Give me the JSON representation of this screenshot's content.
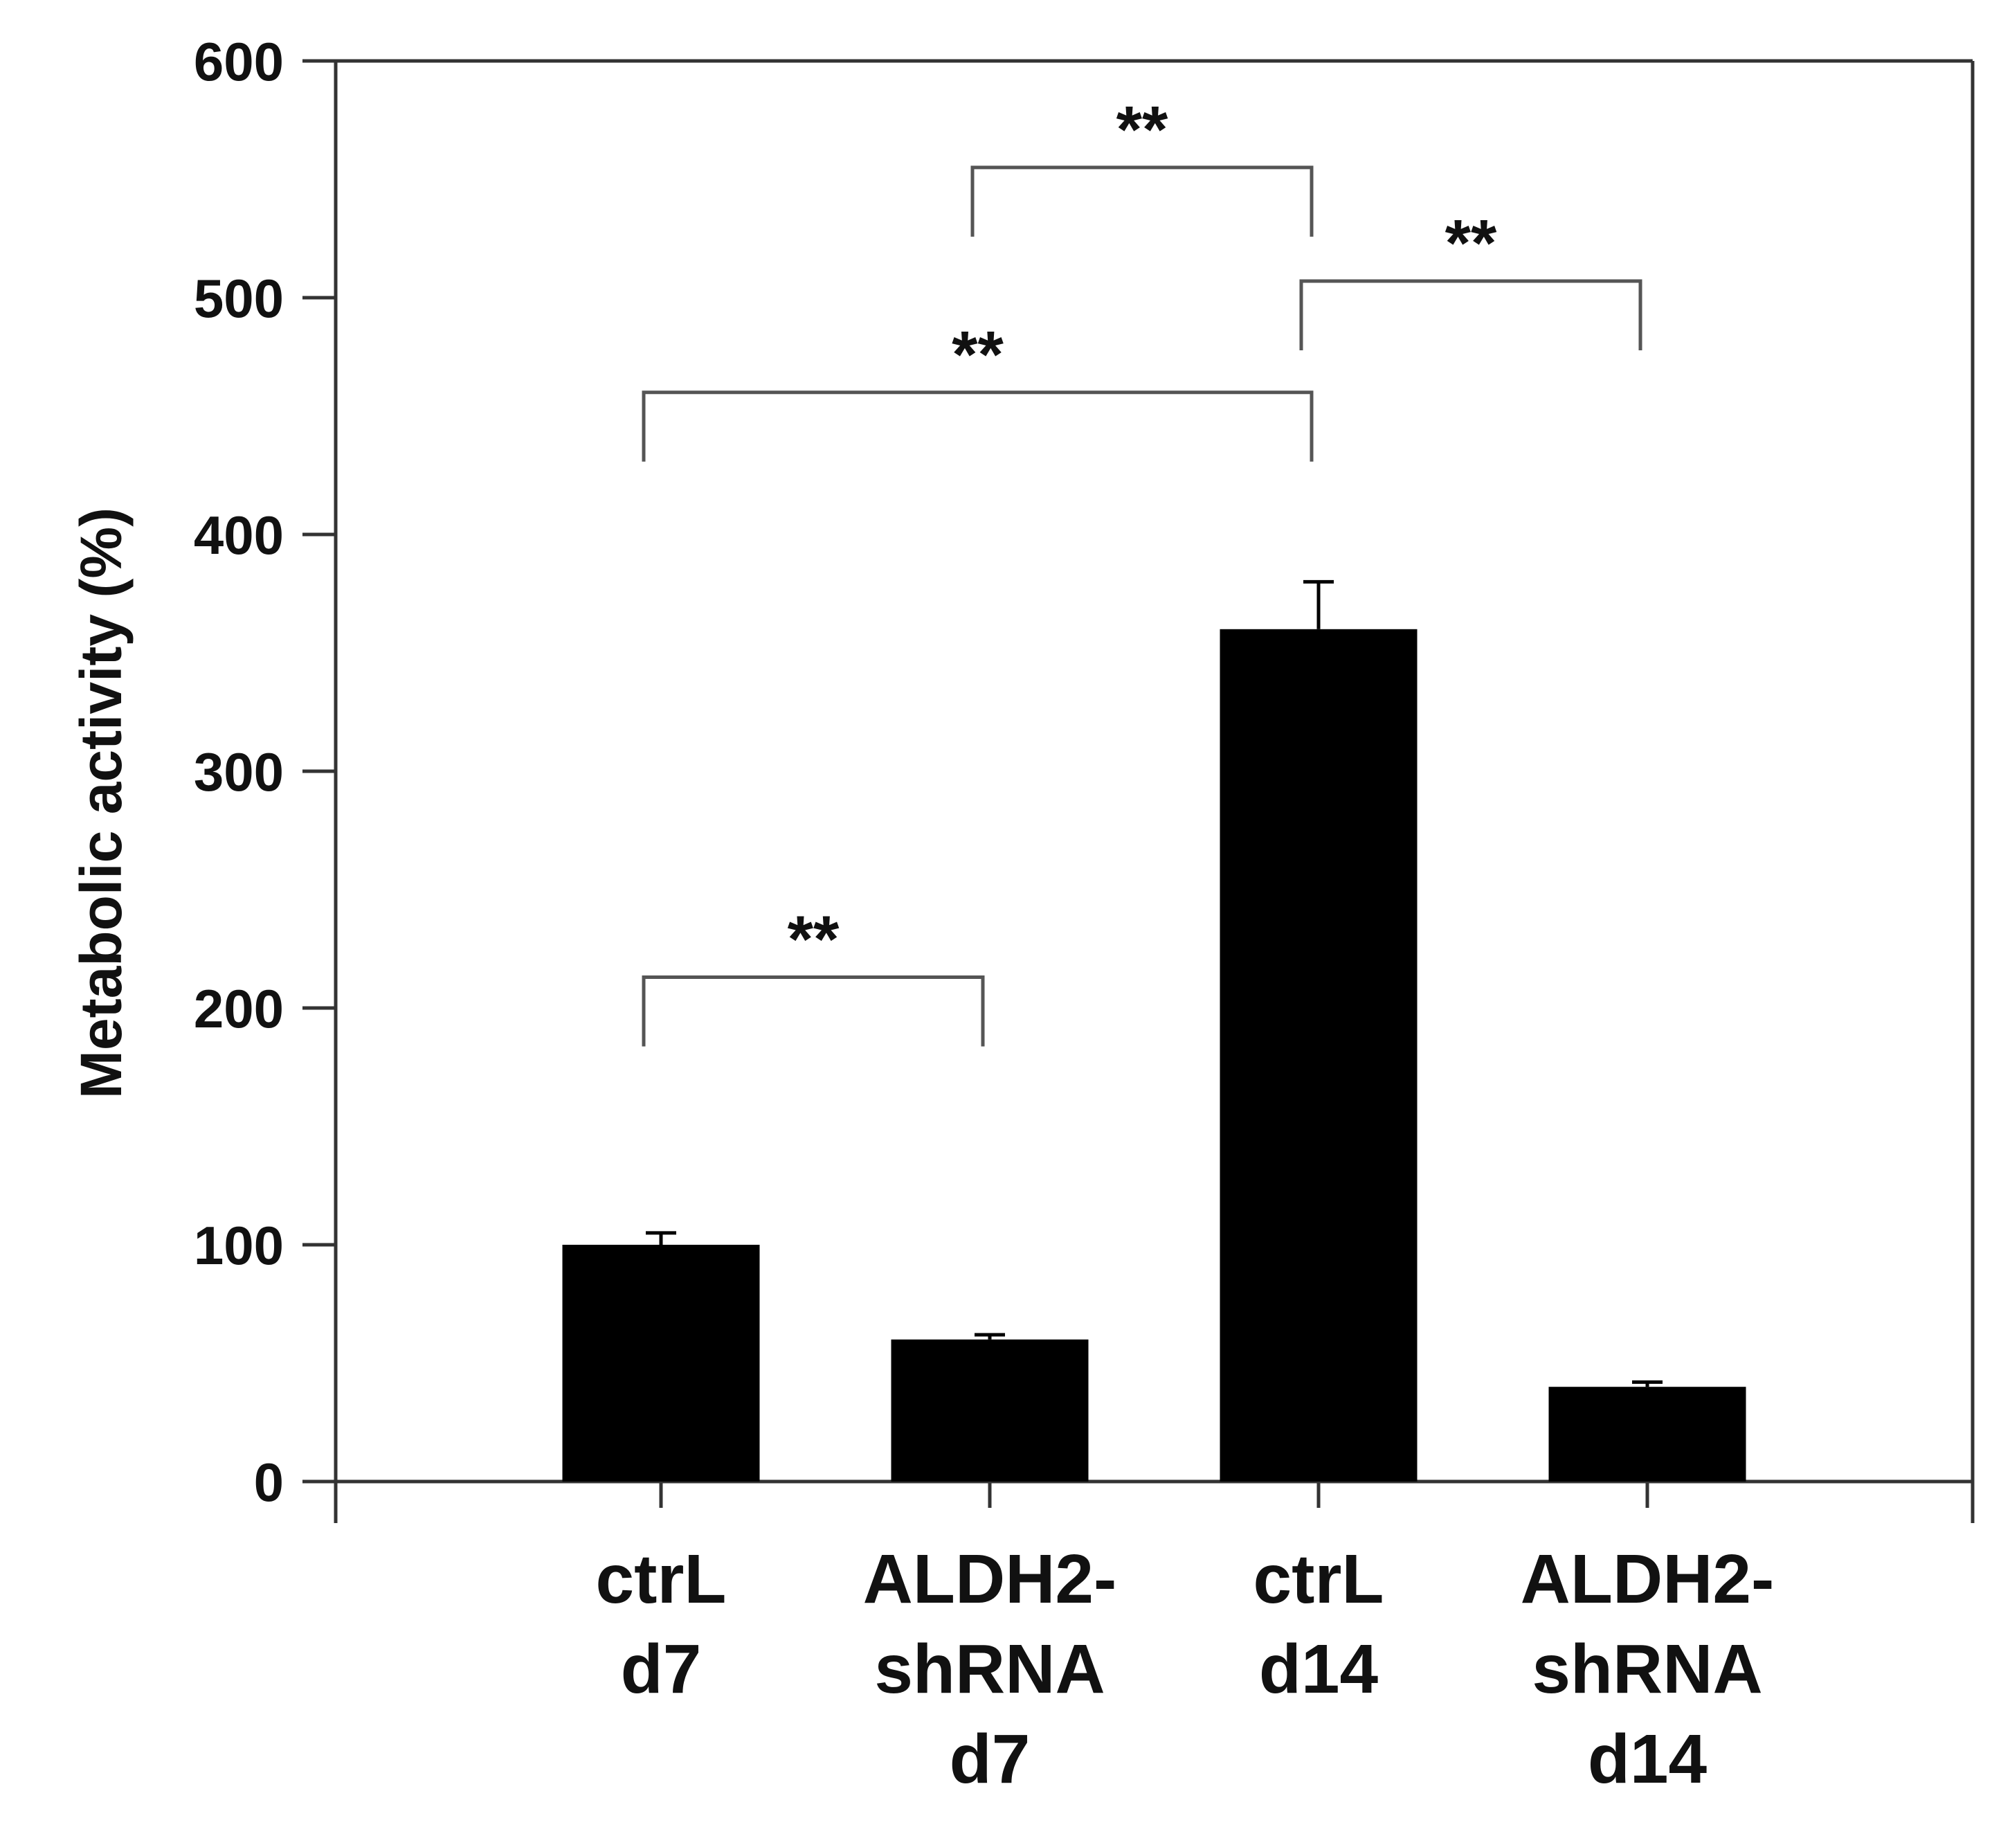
{
  "chart_data": {
    "type": "bar",
    "title": "",
    "xlabel": "",
    "ylabel": "Metabolic activity (%)",
    "ylim": [
      0,
      600
    ],
    "yticks": [
      0,
      100,
      200,
      300,
      400,
      500,
      600
    ],
    "grid": false,
    "categories": [
      [
        "ctrL",
        "d7"
      ],
      [
        "ALDH2-",
        "shRNA",
        "d7"
      ],
      [
        "ctrL",
        "d14"
      ],
      [
        "ALDH2-",
        "shRNA",
        "d14"
      ]
    ],
    "values": [
      100,
      60,
      360,
      40
    ],
    "errors": [
      5,
      2,
      20,
      2
    ],
    "bar_color": "#000000",
    "significance": [
      {
        "from": 0,
        "to": 1,
        "label": "**",
        "y": 213
      },
      {
        "from": 1,
        "to": 2,
        "label": "**",
        "y": 555
      },
      {
        "from": 2,
        "to": 3,
        "label": "**",
        "y": 507
      },
      {
        "from": 0,
        "to": 2,
        "label": "**",
        "y": 460
      }
    ]
  }
}
